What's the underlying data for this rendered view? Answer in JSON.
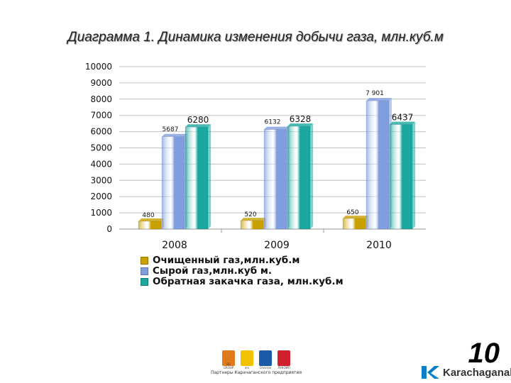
{
  "title": "Диаграмма 1. Динамика изменения добычи газа, млн.куб.м",
  "page_number": "10",
  "partners_caption": "Партнеры Карачаганского предприятия",
  "partner_logos": [
    {
      "name": "bg-logo",
      "color": "#e07a1a",
      "label": "BG GROUP"
    },
    {
      "name": "eni-logo",
      "color": "#f2c200",
      "label": "eni"
    },
    {
      "name": "chevron-logo",
      "color": "#1a5aa6",
      "label": "Chevron"
    },
    {
      "name": "lukoil-logo",
      "color": "#d0202e",
      "label": "ЛУКОЙЛ"
    }
  ],
  "brand": "Karachaganak",
  "colors": {
    "gold": "#c8a000",
    "blue": "#7f9ee0",
    "teal": "#1aa8a0",
    "grid": "#c0c0c0"
  },
  "chart_data": {
    "type": "bar",
    "title": "Диаграмма 1. Динамика изменения добычи газа, млн.куб.м",
    "categories": [
      "2008",
      "2009",
      "2010"
    ],
    "series": [
      {
        "name": "Очищенный газ,млн.куб.м",
        "values": [
          480,
          520,
          650
        ],
        "labels": [
          "480",
          "520",
          "650"
        ],
        "color": "#c8a000"
      },
      {
        "name": "Сырой газ,млн.куб м.",
        "values": [
          5687,
          6132,
          7901
        ],
        "labels": [
          "5687",
          "6132",
          "7 901"
        ],
        "color": "#7f9ee0"
      },
      {
        "name": "Обратная закачка газа, млн.куб.м",
        "values": [
          6280,
          6328,
          6437
        ],
        "labels": [
          "6280",
          "6328",
          "6437"
        ],
        "color": "#1aa8a0"
      }
    ],
    "y_ticks": [
      "0",
      "1000",
      "2000",
      "3000",
      "4000",
      "5000",
      "6000",
      "7000",
      "8000",
      "9000",
      "10000"
    ],
    "ylim": [
      0,
      10000
    ],
    "grid": true,
    "legend_position": "bottom"
  }
}
